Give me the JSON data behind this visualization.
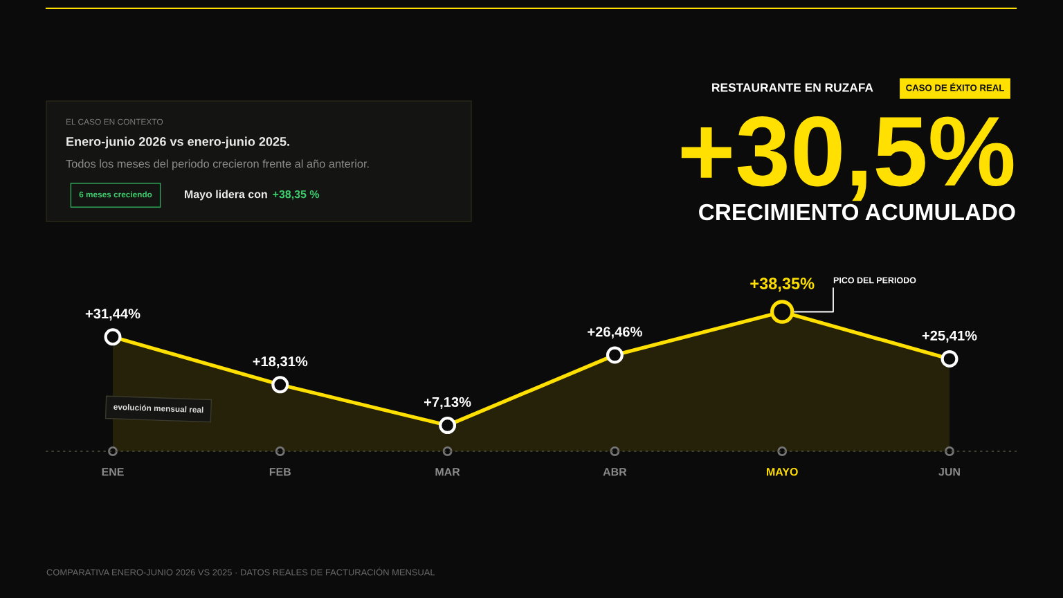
{
  "chart_data": {
    "type": "area",
    "title": "+30,5%",
    "subtitle": "CRECIMIENTO ACUMULADO",
    "categories": [
      "ENE",
      "FEB",
      "MAR",
      "ABR",
      "MAYO",
      "JUN"
    ],
    "series": [
      {
        "color": "#ffe000",
        "values": [
          31.44,
          18.31,
          7.13,
          26.46,
          38.35,
          25.41
        ],
        "colors": [
          "#ffffff",
          "#ffffff",
          "#ffffff",
          "#ffffff",
          "#ffe000",
          "#ffffff"
        ],
        "value_labels": [
          "+31,44%",
          "+18,31%",
          "+7,13%",
          "+26,46%",
          "+38,35%",
          "+25,41%"
        ]
      }
    ],
    "marker": "circle",
    "line_style": "solid",
    "annotations": [
      "RESTAURANTE EN RUZAFA",
      "CASO DE ÉXITO REAL",
      "EL CASO EN CONTEXTO",
      "Enero-junio 2026 vs enero-junio 2025.",
      "Todos los meses del periodo crecieron frente al año anterior.",
      "6 meses creciendo",
      "Mayo lidera con",
      "+38,35 %",
      "evolución mensual real",
      {
        "text": "PICO DEL PERIODO",
        "x": "MAYO",
        "y": 38.35
      },
      "COMPARATIVA ENERO-JUNIO 2026 VS 2025 · DATOS REALES DE FACTURACIÓN MENSUAL"
    ]
  }
}
